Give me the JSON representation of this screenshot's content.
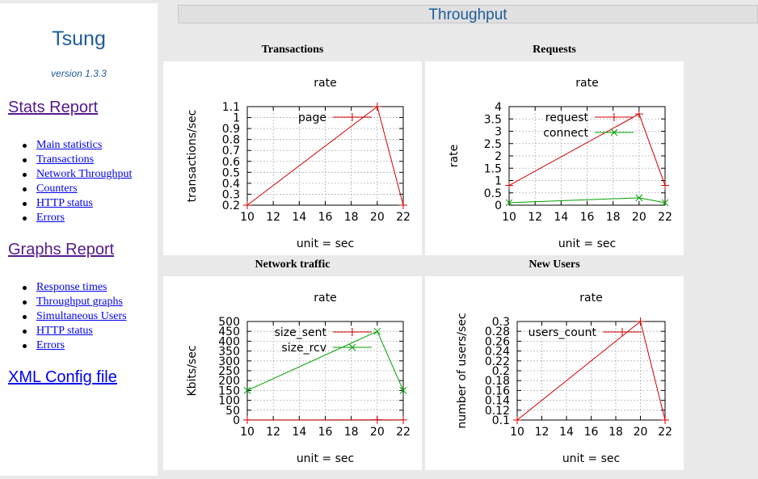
{
  "sidebar": {
    "title": "Tsung",
    "version": "version 1.3.3",
    "stats_report": "Stats Report",
    "stats_items": [
      "Main statistics",
      "Transactions",
      "Network Throughput",
      "Counters",
      "HTTP status",
      "Errors"
    ],
    "graphs_report": "Graphs Report",
    "graphs_items": [
      "Response times",
      "Throughput graphs",
      "Simultaneous Users",
      "HTTP status",
      "Errors"
    ],
    "xml_config": "XML Config file"
  },
  "header": {
    "title": "Throughput"
  },
  "colors": {
    "series_red": "#d00000",
    "series_green": "#00a000",
    "title_blue": "#1f5c99"
  },
  "chart_data": [
    {
      "panel_title": "Transactions",
      "type": "line",
      "title": "rate",
      "xlabel": "unit = sec",
      "ylabel": "transactions/sec",
      "xlim": [
        10,
        22
      ],
      "ylim": [
        0.2,
        1.1
      ],
      "xticks": [
        10,
        12,
        14,
        16,
        18,
        20,
        22
      ],
      "yticks": [
        0.2,
        0.3,
        0.4,
        0.5,
        0.6,
        0.7,
        0.8,
        0.9,
        1,
        1.1
      ],
      "ytick_labels": [
        "0.2",
        "0.3",
        "0.4",
        "0.5",
        "0.6",
        "0.7",
        "0.8",
        "0.9",
        "1",
        "1.1"
      ],
      "grid": true,
      "legend": "top-left",
      "series": [
        {
          "name": "page",
          "color": "#d00000",
          "marker": "+",
          "x": [
            10,
            20,
            22
          ],
          "y": [
            0.2,
            1.1,
            0.2
          ]
        }
      ]
    },
    {
      "panel_title": "Requests",
      "type": "line",
      "title": "rate",
      "xlabel": "unit = sec",
      "ylabel": "rate",
      "xlim": [
        10,
        22
      ],
      "ylim": [
        0,
        4
      ],
      "xticks": [
        10,
        12,
        14,
        16,
        18,
        20,
        22
      ],
      "yticks": [
        0,
        0.5,
        1,
        1.5,
        2,
        2.5,
        3,
        3.5,
        4
      ],
      "ytick_labels": [
        "0",
        "0.5",
        "1",
        "1.5",
        "2",
        "2.5",
        "3",
        "3.5",
        "4"
      ],
      "grid": true,
      "legend": "top-left",
      "series": [
        {
          "name": "request",
          "color": "#d00000",
          "marker": "+",
          "x": [
            10,
            20,
            22
          ],
          "y": [
            0.8,
            3.7,
            0.8
          ]
        },
        {
          "name": "connect",
          "color": "#00a000",
          "marker": "x",
          "x": [
            10,
            20,
            22
          ],
          "y": [
            0.1,
            0.3,
            0.1
          ]
        }
      ]
    },
    {
      "panel_title": "Network traffic",
      "type": "line",
      "title": "rate",
      "xlabel": "unit = sec",
      "ylabel": "Kbits/sec",
      "xlim": [
        10,
        22
      ],
      "ylim": [
        0,
        500
      ],
      "xticks": [
        10,
        12,
        14,
        16,
        18,
        20,
        22
      ],
      "yticks": [
        0,
        50,
        100,
        150,
        200,
        250,
        300,
        350,
        400,
        450,
        500
      ],
      "ytick_labels": [
        "0",
        "50",
        "100",
        "150",
        "200",
        "250",
        "300",
        "350",
        "400",
        "450",
        "500"
      ],
      "grid": true,
      "legend": "top-left",
      "series": [
        {
          "name": "size_sent",
          "color": "#d00000",
          "marker": "+",
          "x": [
            10,
            20,
            22
          ],
          "y": [
            0.5,
            1,
            0.5
          ]
        },
        {
          "name": "size_rcv",
          "color": "#00a000",
          "marker": "x",
          "x": [
            10,
            20,
            22
          ],
          "y": [
            150,
            450,
            150
          ]
        }
      ]
    },
    {
      "panel_title": "New Users",
      "type": "line",
      "title": "rate",
      "xlabel": "unit = sec",
      "ylabel": "number of users/sec",
      "xlim": [
        10,
        22
      ],
      "ylim": [
        0.1,
        0.3
      ],
      "xticks": [
        10,
        12,
        14,
        16,
        18,
        20,
        22
      ],
      "yticks": [
        0.1,
        0.12,
        0.14,
        0.16,
        0.18,
        0.2,
        0.22,
        0.24,
        0.26,
        0.28,
        0.3
      ],
      "ytick_labels": [
        "0.1",
        "0.12",
        "0.14",
        "0.16",
        "0.18",
        "0.2",
        "0.22",
        "0.24",
        "0.26",
        "0.28",
        "0.3"
      ],
      "grid": true,
      "legend": "top-left",
      "series": [
        {
          "name": "users_count",
          "color": "#d00000",
          "marker": "+",
          "x": [
            10,
            20,
            22
          ],
          "y": [
            0.1,
            0.3,
            0.1
          ]
        }
      ]
    }
  ]
}
